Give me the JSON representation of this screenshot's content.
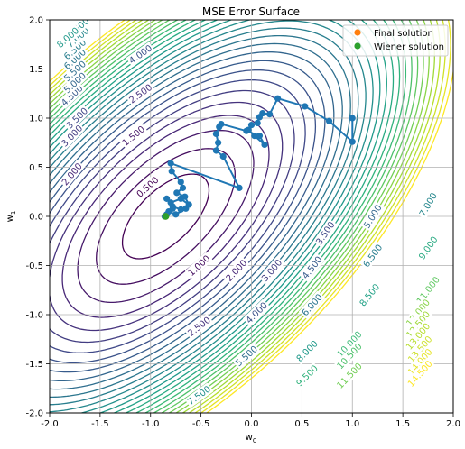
{
  "chart_data": {
    "type": "contour",
    "title": "MSE Error Surface",
    "xlabel": "w",
    "xlabel_sub": "0",
    "ylabel": "w",
    "ylabel_sub": "1",
    "xlim": [
      -2.0,
      2.0
    ],
    "ylim": [
      -2.0,
      2.0
    ],
    "xticks": [
      "-2.0",
      "-1.5",
      "-1.0",
      "-0.5",
      "0.0",
      "0.5",
      "1.0",
      "1.5",
      "2.0"
    ],
    "yticks": [
      "-2.0",
      "-1.5",
      "-1.0",
      "-0.5",
      "0.0",
      "0.5",
      "1.0",
      "1.5",
      "2.0"
    ],
    "grid": true,
    "colormap": "viridis",
    "contour_levels": [
      0.5,
      1.0,
      1.5,
      2.0,
      2.5,
      3.0,
      3.5,
      4.0,
      4.5,
      5.0,
      5.5,
      6.0,
      6.5,
      7.0,
      7.5,
      8.0,
      8.5,
      9.0,
      9.5,
      10.0,
      10.5,
      11.0,
      11.5,
      12.0,
      12.5,
      13.0,
      13.5,
      14.0,
      14.5
    ],
    "minimum": [
      -0.85,
      0.0
    ],
    "contour_labels": [
      {
        "text": "0.500",
        "x": -1.03,
        "y": 0.3
      },
      {
        "text": "1.000",
        "x": -0.52,
        "y": -0.5
      },
      {
        "text": "1.500",
        "x": -1.17,
        "y": 0.82
      },
      {
        "text": "2.000",
        "x": -1.78,
        "y": 0.43
      },
      {
        "text": "2.000",
        "x": -0.15,
        "y": -0.55
      },
      {
        "text": "2.500",
        "x": -1.1,
        "y": 1.25
      },
      {
        "text": "2.500",
        "x": -0.52,
        "y": -1.12
      },
      {
        "text": "3.000",
        "x": -1.78,
        "y": 0.82
      },
      {
        "text": "3.000",
        "x": 0.2,
        "y": -0.55
      },
      {
        "text": "3.500",
        "x": -1.73,
        "y": 1.0
      },
      {
        "text": "3.500",
        "x": 0.73,
        "y": -0.17
      },
      {
        "text": "4.000",
        "x": -1.1,
        "y": 1.65
      },
      {
        "text": "4.000",
        "x": 0.05,
        "y": -0.98
      },
      {
        "text": "4.500",
        "x": -1.78,
        "y": 1.23
      },
      {
        "text": "4.500",
        "x": 0.6,
        "y": -0.52
      },
      {
        "text": "5.000",
        "x": -1.75,
        "y": 1.36
      },
      {
        "text": "5.000",
        "x": 1.2,
        "y": 0.0
      },
      {
        "text": "5.500",
        "x": -1.75,
        "y": 1.48
      },
      {
        "text": "5.500",
        "x": -0.05,
        "y": -1.42
      },
      {
        "text": "6.000",
        "x": -1.75,
        "y": 1.6
      },
      {
        "text": "6.000",
        "x": 0.6,
        "y": -0.9
      },
      {
        "text": "6.500",
        "x": -1.75,
        "y": 1.7
      },
      {
        "text": "6.500",
        "x": 1.2,
        "y": -0.4
      },
      {
        "text": "7.000",
        "x": -1.72,
        "y": 1.82
      },
      {
        "text": "7.000",
        "x": 1.75,
        "y": 0.12
      },
      {
        "text": "7.500",
        "x": -1.72,
        "y": 1.92
      },
      {
        "text": "7.500",
        "x": -0.52,
        "y": -1.82
      },
      {
        "text": "8.000",
        "x": -1.82,
        "y": 1.82
      },
      {
        "text": "8.000",
        "x": 0.55,
        "y": -1.37
      },
      {
        "text": "8.500",
        "x": 1.17,
        "y": -0.8
      },
      {
        "text": "9.000",
        "x": 1.75,
        "y": -0.32
      },
      {
        "text": "9.500",
        "x": 0.55,
        "y": -1.62
      },
      {
        "text": "10.000",
        "x": 0.97,
        "y": -1.3
      },
      {
        "text": "10.500",
        "x": 0.97,
        "y": -1.42
      },
      {
        "text": "11.000",
        "x": 1.75,
        "y": -0.75
      },
      {
        "text": "11.500",
        "x": 0.97,
        "y": -1.62
      },
      {
        "text": "12.000",
        "x": 1.65,
        "y": -0.98
      },
      {
        "text": "12.500",
        "x": 1.65,
        "y": -1.1
      },
      {
        "text": "13.000",
        "x": 1.65,
        "y": -1.22
      },
      {
        "text": "13.500",
        "x": 1.67,
        "y": -1.35
      },
      {
        "text": "14.000",
        "x": 1.67,
        "y": -1.48
      },
      {
        "text": "14.500",
        "x": 1.67,
        "y": -1.6
      }
    ],
    "path_color": "#1f77b4",
    "path": [
      [
        1.0,
        1.0
      ],
      [
        1.0,
        0.76
      ],
      [
        0.77,
        0.97
      ],
      [
        0.53,
        1.12
      ],
      [
        0.26,
        1.2
      ],
      [
        0.18,
        1.04
      ],
      [
        0.11,
        1.05
      ],
      [
        0.08,
        1.01
      ],
      [
        0.06,
        0.95
      ],
      [
        0.0,
        0.93
      ],
      [
        -0.03,
        0.88
      ],
      [
        0.03,
        0.82
      ],
      [
        0.13,
        0.73
      ],
      [
        0.08,
        0.82
      ],
      [
        -0.05,
        0.87
      ],
      [
        -0.3,
        0.94
      ],
      [
        -0.32,
        0.91
      ],
      [
        -0.35,
        0.84
      ],
      [
        -0.33,
        0.75
      ],
      [
        -0.35,
        0.67
      ],
      [
        -0.28,
        0.61
      ],
      [
        -0.12,
        0.29
      ],
      [
        -0.8,
        0.54
      ],
      [
        -0.79,
        0.46
      ],
      [
        -0.7,
        0.35
      ],
      [
        -0.68,
        0.29
      ],
      [
        -0.74,
        0.24
      ],
      [
        -0.66,
        0.2
      ],
      [
        -0.62,
        0.12
      ],
      [
        -0.7,
        0.18
      ],
      [
        -0.8,
        0.14
      ],
      [
        -0.84,
        0.18
      ],
      [
        -0.78,
        0.1
      ],
      [
        -0.7,
        0.07
      ],
      [
        -0.65,
        0.08
      ],
      [
        -0.75,
        0.02
      ],
      [
        -0.82,
        0.05
      ],
      [
        -0.78,
        0.08
      ],
      [
        -0.84,
        0.02
      ],
      [
        -0.86,
        0.0
      ]
    ],
    "final_solution": [
      -0.85,
      0.0
    ],
    "wiener_solution": [
      -0.85,
      0.0
    ],
    "legend": {
      "position": "top-right",
      "entries": [
        {
          "label": "Final solution",
          "color": "#ff7f0e"
        },
        {
          "label": "Wiener solution",
          "color": "#2ca02c"
        }
      ]
    }
  }
}
